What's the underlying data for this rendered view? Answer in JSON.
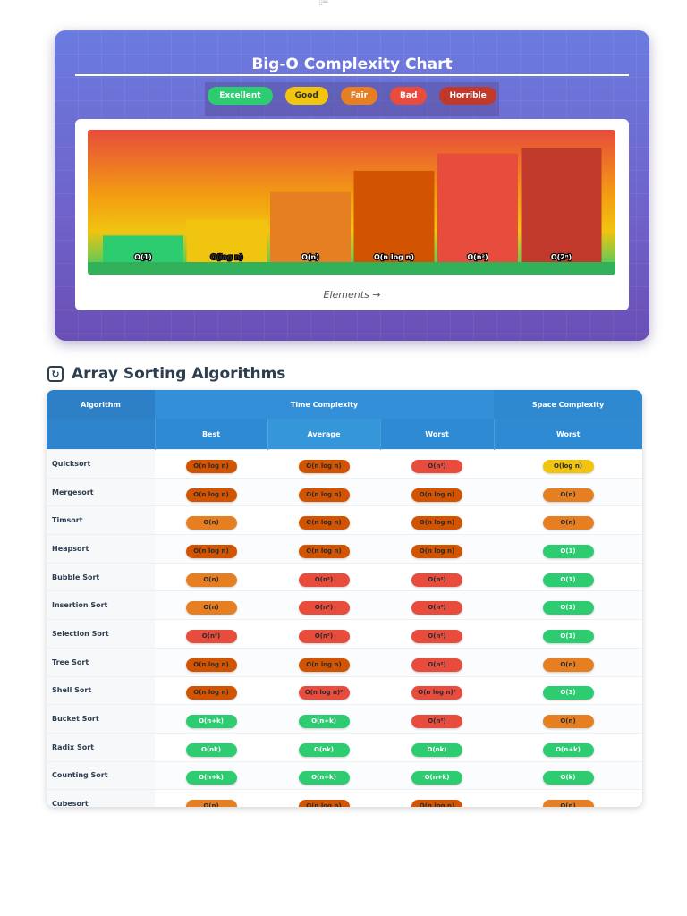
{
  "chart_data": {
    "type": "bar",
    "title": "Big-O Complexity Chart",
    "xlabel": "Elements →",
    "ylabel": "",
    "categories": [
      "O(1)",
      "O(log n)",
      "O(n)",
      "O(n log n)",
      "O(n²)",
      "O(2ⁿ)"
    ],
    "values": [
      20,
      32,
      53,
      69,
      82,
      86
    ],
    "ylim": [
      0,
      100
    ],
    "bar_colors": [
      "#2ecc71",
      "#f1c40f",
      "#e67e22",
      "#d35400",
      "#e74c3c",
      "#c0392b"
    ],
    "legend": [
      {
        "label": "Excellent",
        "color": "#2ecc71"
      },
      {
        "label": "Good",
        "color": "#f1c40f"
      },
      {
        "label": "Fair",
        "color": "#e67e22"
      },
      {
        "label": "Bad",
        "color": "#e74c3c"
      },
      {
        "label": "Horrible",
        "color": "#c0392b"
      }
    ]
  },
  "section": {
    "icon": "refresh-icon",
    "title": "Array Sorting Algorithms"
  },
  "table": {
    "headers": {
      "algorithm": "Algorithm",
      "time": "Time Complexity",
      "space": "Space Complexity",
      "best": "Best",
      "average": "Average",
      "worst": "Worst",
      "space_worst": "Worst"
    },
    "rows": [
      {
        "name": "Quicksort",
        "best": {
          "v": "O(n log n)",
          "c": "nlogn"
        },
        "average": {
          "v": "O(n log n)",
          "c": "nlogn"
        },
        "worst": {
          "v": "O(n²)",
          "c": "bad"
        },
        "space": {
          "v": "O(log n)",
          "c": "good"
        }
      },
      {
        "name": "Mergesort",
        "best": {
          "v": "O(n log n)",
          "c": "nlogn"
        },
        "average": {
          "v": "O(n log n)",
          "c": "nlogn"
        },
        "worst": {
          "v": "O(n log n)",
          "c": "nlogn"
        },
        "space": {
          "v": "O(n)",
          "c": "fair"
        }
      },
      {
        "name": "Timsort",
        "best": {
          "v": "O(n)",
          "c": "fair"
        },
        "average": {
          "v": "O(n log n)",
          "c": "nlogn"
        },
        "worst": {
          "v": "O(n log n)",
          "c": "nlogn"
        },
        "space": {
          "v": "O(n)",
          "c": "fair"
        }
      },
      {
        "name": "Heapsort",
        "best": {
          "v": "O(n log n)",
          "c": "nlogn"
        },
        "average": {
          "v": "O(n log n)",
          "c": "nlogn"
        },
        "worst": {
          "v": "O(n log n)",
          "c": "nlogn"
        },
        "space": {
          "v": "O(1)",
          "c": "excellent"
        }
      },
      {
        "name": "Bubble Sort",
        "best": {
          "v": "O(n)",
          "c": "fair"
        },
        "average": {
          "v": "O(n²)",
          "c": "bad"
        },
        "worst": {
          "v": "O(n²)",
          "c": "bad"
        },
        "space": {
          "v": "O(1)",
          "c": "excellent"
        }
      },
      {
        "name": "Insertion Sort",
        "best": {
          "v": "O(n)",
          "c": "fair"
        },
        "average": {
          "v": "O(n²)",
          "c": "bad"
        },
        "worst": {
          "v": "O(n²)",
          "c": "bad"
        },
        "space": {
          "v": "O(1)",
          "c": "excellent"
        }
      },
      {
        "name": "Selection Sort",
        "best": {
          "v": "O(n²)",
          "c": "bad"
        },
        "average": {
          "v": "O(n²)",
          "c": "bad"
        },
        "worst": {
          "v": "O(n²)",
          "c": "bad"
        },
        "space": {
          "v": "O(1)",
          "c": "excellent"
        }
      },
      {
        "name": "Tree Sort",
        "best": {
          "v": "O(n log n)",
          "c": "nlogn"
        },
        "average": {
          "v": "O(n log n)",
          "c": "nlogn"
        },
        "worst": {
          "v": "O(n²)",
          "c": "bad"
        },
        "space": {
          "v": "O(n)",
          "c": "fair"
        }
      },
      {
        "name": "Shell Sort",
        "best": {
          "v": "O(n log n)",
          "c": "nlogn"
        },
        "average": {
          "v": "O(n log n)²",
          "c": "bad"
        },
        "worst": {
          "v": "O(n log n)²",
          "c": "bad"
        },
        "space": {
          "v": "O(1)",
          "c": "excellent"
        }
      },
      {
        "name": "Bucket Sort",
        "best": {
          "v": "O(n+k)",
          "c": "excellent"
        },
        "average": {
          "v": "O(n+k)",
          "c": "excellent"
        },
        "worst": {
          "v": "O(n²)",
          "c": "bad"
        },
        "space": {
          "v": "O(n)",
          "c": "fair"
        }
      },
      {
        "name": "Radix Sort",
        "best": {
          "v": "O(nk)",
          "c": "excellent"
        },
        "average": {
          "v": "O(nk)",
          "c": "excellent"
        },
        "worst": {
          "v": "O(nk)",
          "c": "excellent"
        },
        "space": {
          "v": "O(n+k)",
          "c": "excellent"
        }
      },
      {
        "name": "Counting Sort",
        "best": {
          "v": "O(n+k)",
          "c": "excellent"
        },
        "average": {
          "v": "O(n+k)",
          "c": "excellent"
        },
        "worst": {
          "v": "O(n+k)",
          "c": "excellent"
        },
        "space": {
          "v": "O(k)",
          "c": "excellent"
        }
      },
      {
        "name": "Cubesort",
        "best": {
          "v": "O(n)",
          "c": "fair"
        },
        "average": {
          "v": "O(n log n)",
          "c": "nlogn"
        },
        "worst": {
          "v": "O(n log n)",
          "c": "nlogn"
        },
        "space": {
          "v": "O(n)",
          "c": "fair"
        }
      }
    ]
  }
}
